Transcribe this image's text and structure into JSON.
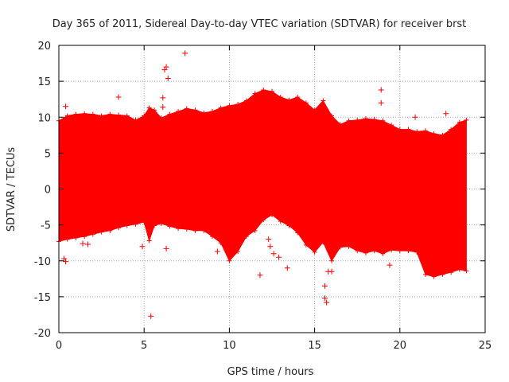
{
  "chart_data": {
    "type": "scatter",
    "title": "Day 365 of 2011, Sidereal Day-to-day VTEC variation (SDTVAR) for receiver brst",
    "xlabel": "GPS time / hours",
    "ylabel": "SDTVAR / TECUs",
    "xlim": [
      0,
      25
    ],
    "ylim": [
      -20,
      20
    ],
    "xticks": [
      0,
      5,
      10,
      15,
      20,
      25
    ],
    "yticks": [
      -20,
      -15,
      -10,
      -5,
      0,
      5,
      10,
      15,
      20
    ],
    "grid": true,
    "series_color": "#ff0000",
    "band": {
      "name": "dense SDTVAR samples (envelope)",
      "x": [
        0.0,
        0.5,
        1.0,
        1.5,
        2.0,
        2.5,
        3.0,
        3.5,
        4.0,
        4.5,
        5.0,
        5.3,
        5.6,
        6.0,
        6.5,
        7.0,
        7.5,
        8.0,
        8.5,
        9.0,
        9.5,
        10.0,
        10.5,
        11.0,
        11.5,
        12.0,
        12.5,
        13.0,
        13.5,
        14.0,
        14.5,
        15.0,
        15.5,
        16.0,
        16.5,
        17.0,
        17.5,
        18.0,
        18.5,
        19.0,
        19.5,
        20.0,
        20.5,
        21.0,
        21.5,
        22.0,
        22.5,
        23.0,
        23.5,
        23.9
      ],
      "upper": [
        9.5,
        10.2,
        10.4,
        10.5,
        10.4,
        10.2,
        10.4,
        10.3,
        10.2,
        9.6,
        10.2,
        11.3,
        11.0,
        9.9,
        10.4,
        10.8,
        11.2,
        11.0,
        10.6,
        10.8,
        11.3,
        11.6,
        11.8,
        12.3,
        13.3,
        13.8,
        13.6,
        12.8,
        12.4,
        12.8,
        12.0,
        11.0,
        12.3,
        10.2,
        9.0,
        9.5,
        9.6,
        9.8,
        9.7,
        9.5,
        8.9,
        8.3,
        8.3,
        8.0,
        8.1,
        7.7,
        7.5,
        8.3,
        9.3,
        9.6
      ],
      "lower": [
        -7.3,
        -7.0,
        -6.8,
        -6.6,
        -6.3,
        -6.0,
        -5.8,
        -5.4,
        -5.1,
        -4.9,
        -4.6,
        -7.2,
        -5.1,
        -4.8,
        -5.2,
        -5.5,
        -5.6,
        -5.8,
        -5.8,
        -6.6,
        -7.5,
        -10.0,
        -8.7,
        -6.6,
        -5.8,
        -4.3,
        -3.6,
        -4.5,
        -5.1,
        -6.1,
        -7.8,
        -8.8,
        -7.4,
        -10.0,
        -8.1,
        -8.0,
        -8.6,
        -8.9,
        -8.6,
        -9.0,
        -8.5,
        -8.6,
        -8.6,
        -8.8,
        -11.9,
        -12.2,
        -11.9,
        -11.6,
        -11.2,
        -11.4
      ]
    },
    "outliers": {
      "x": [
        7.4,
        6.4,
        6.3,
        6.2,
        6.1,
        6.1,
        3.5,
        18.9,
        18.9,
        10.0,
        4.0,
        0.4,
        0.3,
        0.4,
        20.9,
        22.7,
        5.4,
        11.8,
        15.8,
        15.7,
        16.0,
        12.4,
        12.6,
        12.3,
        13.4,
        12.9,
        19.4,
        15.6,
        15.6,
        1.4,
        1.7,
        6.3,
        9.3,
        4.9
      ],
      "y": [
        18.9,
        15.4,
        17.0,
        16.6,
        12.7,
        11.4,
        12.8,
        13.8,
        12.0,
        11.3,
        9.8,
        11.5,
        -9.7,
        -10.1,
        10.0,
        10.5,
        -17.7,
        -12.0,
        -11.5,
        -15.8,
        -11.5,
        -8.0,
        -9.0,
        -7.0,
        -11.0,
        -9.5,
        -10.6,
        -13.5,
        -15.2,
        -7.6,
        -7.7,
        -8.3,
        -8.7,
        -8.0
      ]
    }
  }
}
